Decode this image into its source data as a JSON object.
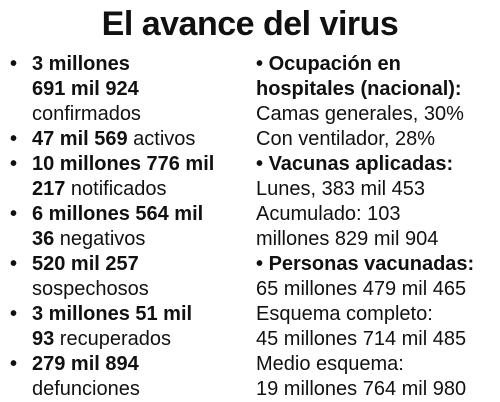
{
  "title": "El avance del virus",
  "bullet_glyph": "•",
  "left_items": [
    {
      "lines": [
        {
          "bold": "3 millones",
          "normal": ""
        },
        {
          "bold": "691 mil 924",
          "normal": ""
        },
        {
          "bold": "",
          "normal": "confirmados"
        }
      ]
    },
    {
      "lines": [
        {
          "bold": "47 mil 569",
          "normal": " activos"
        }
      ]
    },
    {
      "lines": [
        {
          "bold": "10 millones 776 mil",
          "normal": ""
        },
        {
          "bold": "217",
          "normal": " notificados"
        }
      ]
    },
    {
      "lines": [
        {
          "bold": "6 millones 564 mil",
          "normal": ""
        },
        {
          "bold": "36",
          "normal": " negativos"
        }
      ]
    },
    {
      "lines": [
        {
          "bold": "520 mil 257",
          "normal": ""
        },
        {
          "bold": "",
          "normal": "sospechosos"
        }
      ]
    },
    {
      "lines": [
        {
          "bold": "3 millones 51 mil",
          "normal": ""
        },
        {
          "bold": "93",
          "normal": " recuperados"
        }
      ]
    },
    {
      "lines": [
        {
          "bold": "279 mil 894",
          "normal": ""
        },
        {
          "bold": "",
          "normal": "defunciones"
        }
      ]
    }
  ],
  "right_lines": [
    {
      "bullet": true,
      "text": "Ocupación en",
      "bold": true
    },
    {
      "bullet": false,
      "text": "hospitales (nacional):",
      "bold": true
    },
    {
      "bullet": false,
      "text": "Camas generales, 30%",
      "bold": false
    },
    {
      "bullet": false,
      "text": "Con ventilador, 28%",
      "bold": false
    },
    {
      "bullet": true,
      "text": "Vacunas aplicadas:",
      "bold": true
    },
    {
      "bullet": false,
      "text": "Lunes, 383 mil 453",
      "bold": false
    },
    {
      "bullet": false,
      "text": "Acumulado: 103",
      "bold": false
    },
    {
      "bullet": false,
      "text": "millones 829 mil 904",
      "bold": false
    },
    {
      "bullet": true,
      "text": "Personas vacunadas:",
      "bold": true
    },
    {
      "bullet": false,
      "text": "65 millones 479 mil 465",
      "bold": false
    },
    {
      "bullet": false,
      "text": "Esquema completo:",
      "bold": false
    },
    {
      "bullet": false,
      "text": "45 millones 714 mil 485",
      "bold": false
    },
    {
      "bullet": false,
      "text": "Medio esquema:",
      "bold": false
    },
    {
      "bullet": false,
      "text": "19 millones 764 mil 980",
      "bold": false
    }
  ]
}
